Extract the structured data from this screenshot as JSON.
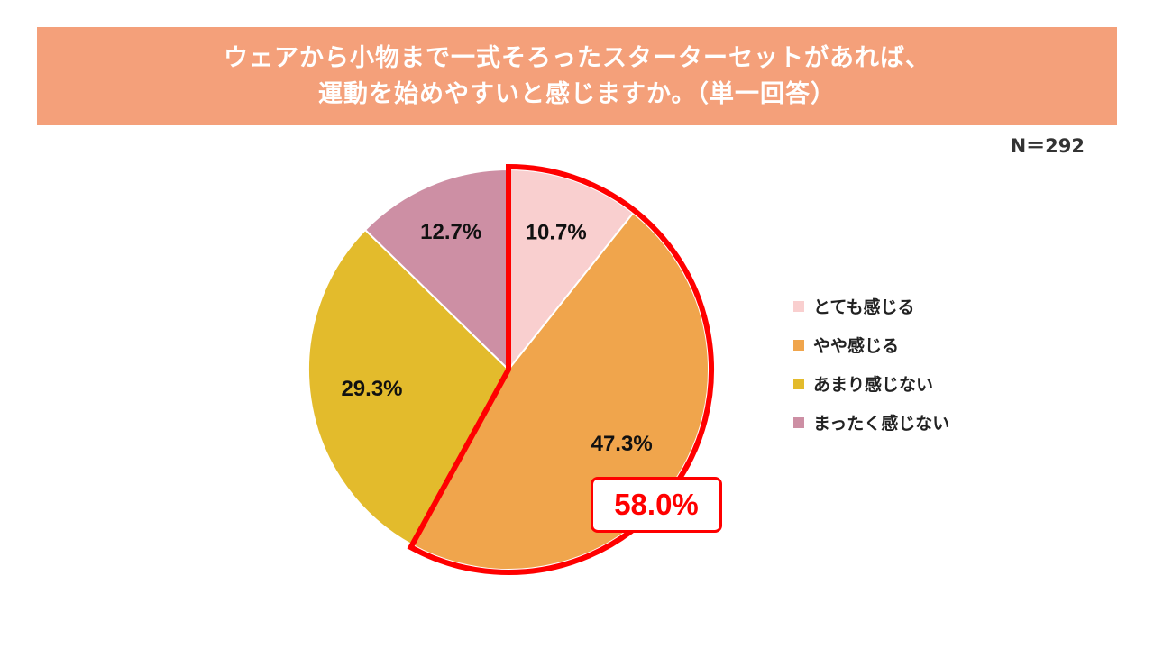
{
  "title": {
    "line1": "ウェアから小物まで一式そろったスターターセットがあれば、",
    "line2": "運動を始めやすいと感じますか。（単一回答）"
  },
  "sample_size": "N＝292",
  "callout": {
    "text": "58.0%",
    "color": "#ff0000"
  },
  "chart_data": {
    "type": "pie",
    "title": "ウェアから小物まで一式そろったスターターセットがあれば、運動を始めやすいと感じますか。（単一回答）",
    "categories": [
      "とても感じる",
      "やや感じる",
      "あまり感じない",
      "まったく感じない"
    ],
    "values": [
      10.7,
      47.3,
      29.3,
      12.7
    ],
    "value_labels": [
      "10.7%",
      "47.3%",
      "29.3%",
      "12.7%"
    ],
    "colors": [
      "#f9cfcf",
      "#f0a54c",
      "#e3bb2c",
      "#cd8fa4"
    ],
    "highlight": {
      "slices": [
        "とても感じる",
        "やや感じる"
      ],
      "total_label": "58.0%"
    },
    "legend_position": "right"
  }
}
